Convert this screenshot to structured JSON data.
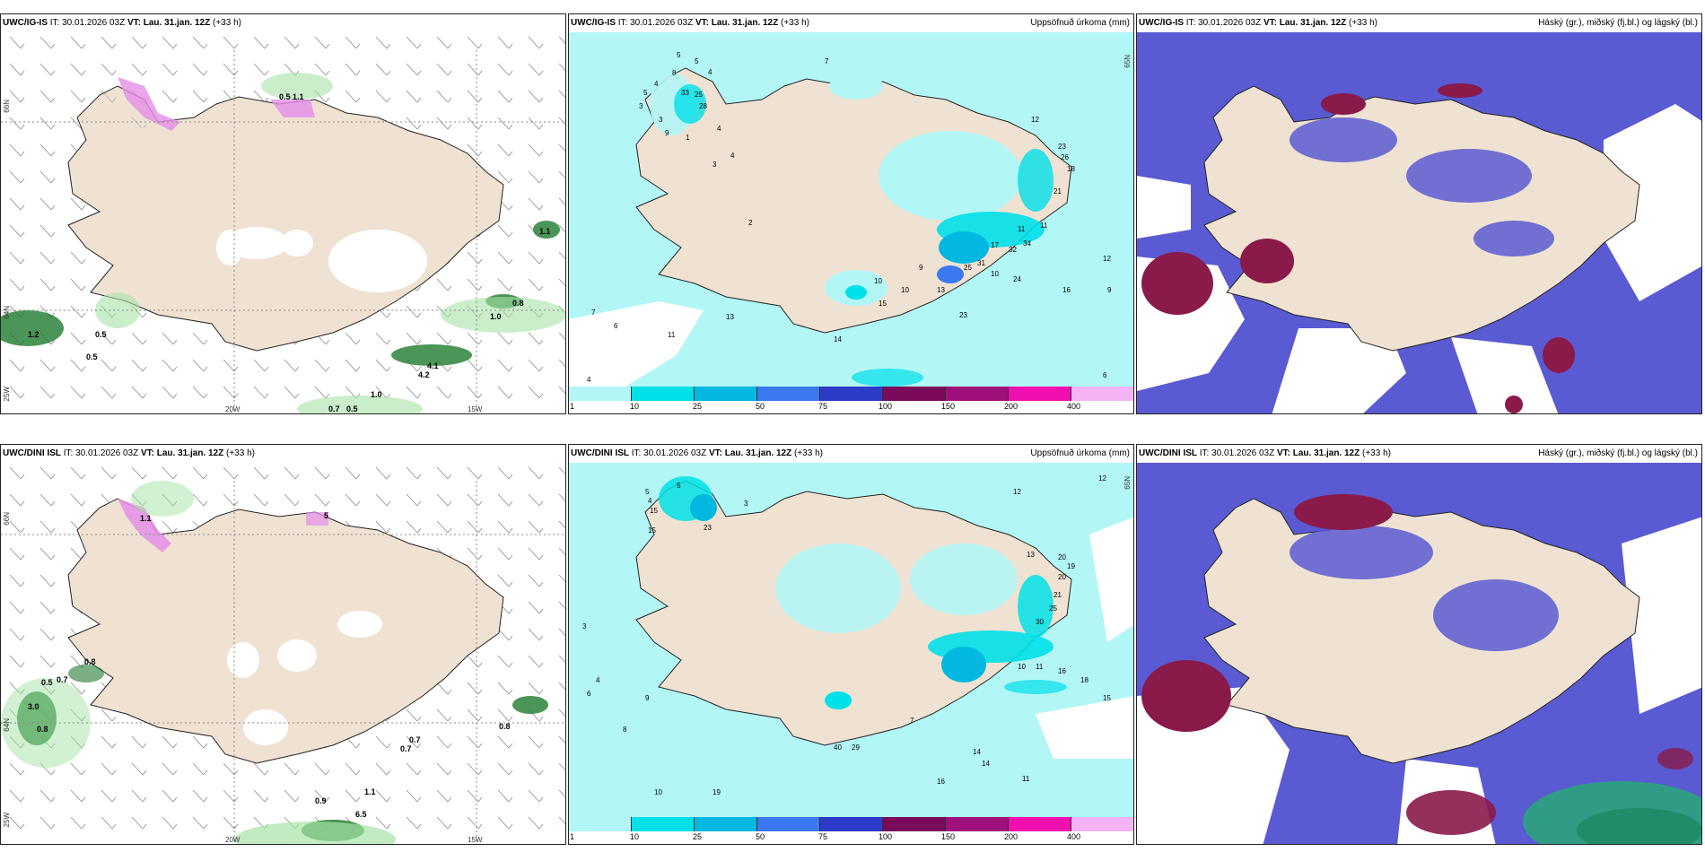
{
  "top_row": {
    "wind_panel": {
      "model": "UWC/IG-IS",
      "it_label": "IT:",
      "it_time": "30.01.2026 03Z",
      "vt_label": "VT:",
      "vt_time": "Lau. 31.jan. 12Z",
      "lead": "(+33 h)",
      "lat_labels": [
        "66N",
        "64N"
      ],
      "lon_labels": [
        "25W",
        "20W",
        "15W"
      ],
      "values": [
        "0.5",
        "1.1",
        "1.2",
        "0.5",
        "0.5",
        "1.0",
        "0.8",
        "1.1",
        "4.1",
        "4.2",
        "1.0",
        "0.7",
        "0.5"
      ]
    },
    "precip_panel": {
      "model": "UWC/IG-IS",
      "it_label": "IT:",
      "it_time": "30.01.2026 03Z",
      "vt_label": "VT:",
      "vt_time": "Lau. 31.jan. 12Z",
      "lead": "(+33 h)",
      "title": "Uppsöfnuð úrkoma (mm)",
      "lat_label": "65N",
      "values": [
        "5",
        "3",
        "4",
        "5",
        "5",
        "8",
        "4",
        "3",
        "9",
        "33",
        "25",
        "28",
        "4",
        "1",
        "3",
        "4",
        "2",
        "7",
        "12",
        "23",
        "26",
        "18",
        "21",
        "11",
        "34",
        "32",
        "17",
        "31",
        "25",
        "10",
        "24",
        "11",
        "13",
        "23",
        "16",
        "10",
        "15",
        "10",
        "9",
        "7",
        "11",
        "13",
        "6",
        "14",
        "4",
        "6",
        "9",
        "12"
      ]
    },
    "cloud_panel": {
      "model": "UWC/IG-IS",
      "it_label": "IT:",
      "it_time": "30.01.2026 03Z",
      "vt_label": "VT:",
      "vt_time": "Lau. 31.jan. 12Z",
      "lead": "(+33 h)",
      "title": "Háský (gr.), miðský (fj.bl.) og lágský (bl.)"
    }
  },
  "bottom_row": {
    "wind_panel": {
      "model": "UWC/DINI ISL",
      "it_label": "IT:",
      "it_time": "30.01.2026 03Z",
      "vt_label": "VT:",
      "vt_time": "Lau. 31.jan. 12Z",
      "lead": "(+33 h)",
      "lat_labels": [
        "66N",
        "64N"
      ],
      "lon_labels": [
        "25W",
        "20W",
        "15W"
      ],
      "values": [
        "1.1",
        "5",
        "0.8",
        "0.5",
        "0.7",
        "3.0",
        "0.8",
        "0.8",
        "0.7",
        "0.7",
        "0.9",
        "6.5",
        "1.1"
      ]
    },
    "precip_panel": {
      "model": "UWC/DINI ISL",
      "it_label": "IT:",
      "it_time": "30.01.2026 03Z",
      "vt_label": "VT:",
      "vt_time": "Lau. 31.jan. 12Z",
      "lead": "(+33 h)",
      "title": "Uppsöfnuð úrkoma (mm)",
      "lat_label": "65N",
      "values": [
        "5",
        "4",
        "15",
        "15",
        "23",
        "5",
        "3",
        "12",
        "13",
        "20",
        "19",
        "20",
        "21",
        "25",
        "30",
        "12",
        "11",
        "16",
        "18",
        "15",
        "10",
        "19",
        "14",
        "14",
        "11",
        "16",
        "29",
        "40",
        "7",
        "6",
        "4",
        "3",
        "9",
        "8",
        "10"
      ]
    },
    "cloud_panel": {
      "model": "UWC/DINI ISL",
      "it_label": "IT:",
      "it_time": "30.01.2026 03Z",
      "vt_label": "VT:",
      "vt_time": "Lau. 31.jan. 12Z",
      "lead": "(+33 h)",
      "title": "Háský (gr.), miðský (fj.bl.) og lágský (bl.)"
    }
  },
  "colorbar": {
    "ticks": [
      "1",
      "10",
      "25",
      "50",
      "75",
      "100",
      "150",
      "200",
      "400"
    ],
    "colors": [
      "#b3f6f6",
      "#00e0e8",
      "#00b8e0",
      "#3c78f0",
      "#2c3cc8",
      "#7a0a5a",
      "#a0107a",
      "#f010b0",
      "#f4b4f4"
    ]
  }
}
